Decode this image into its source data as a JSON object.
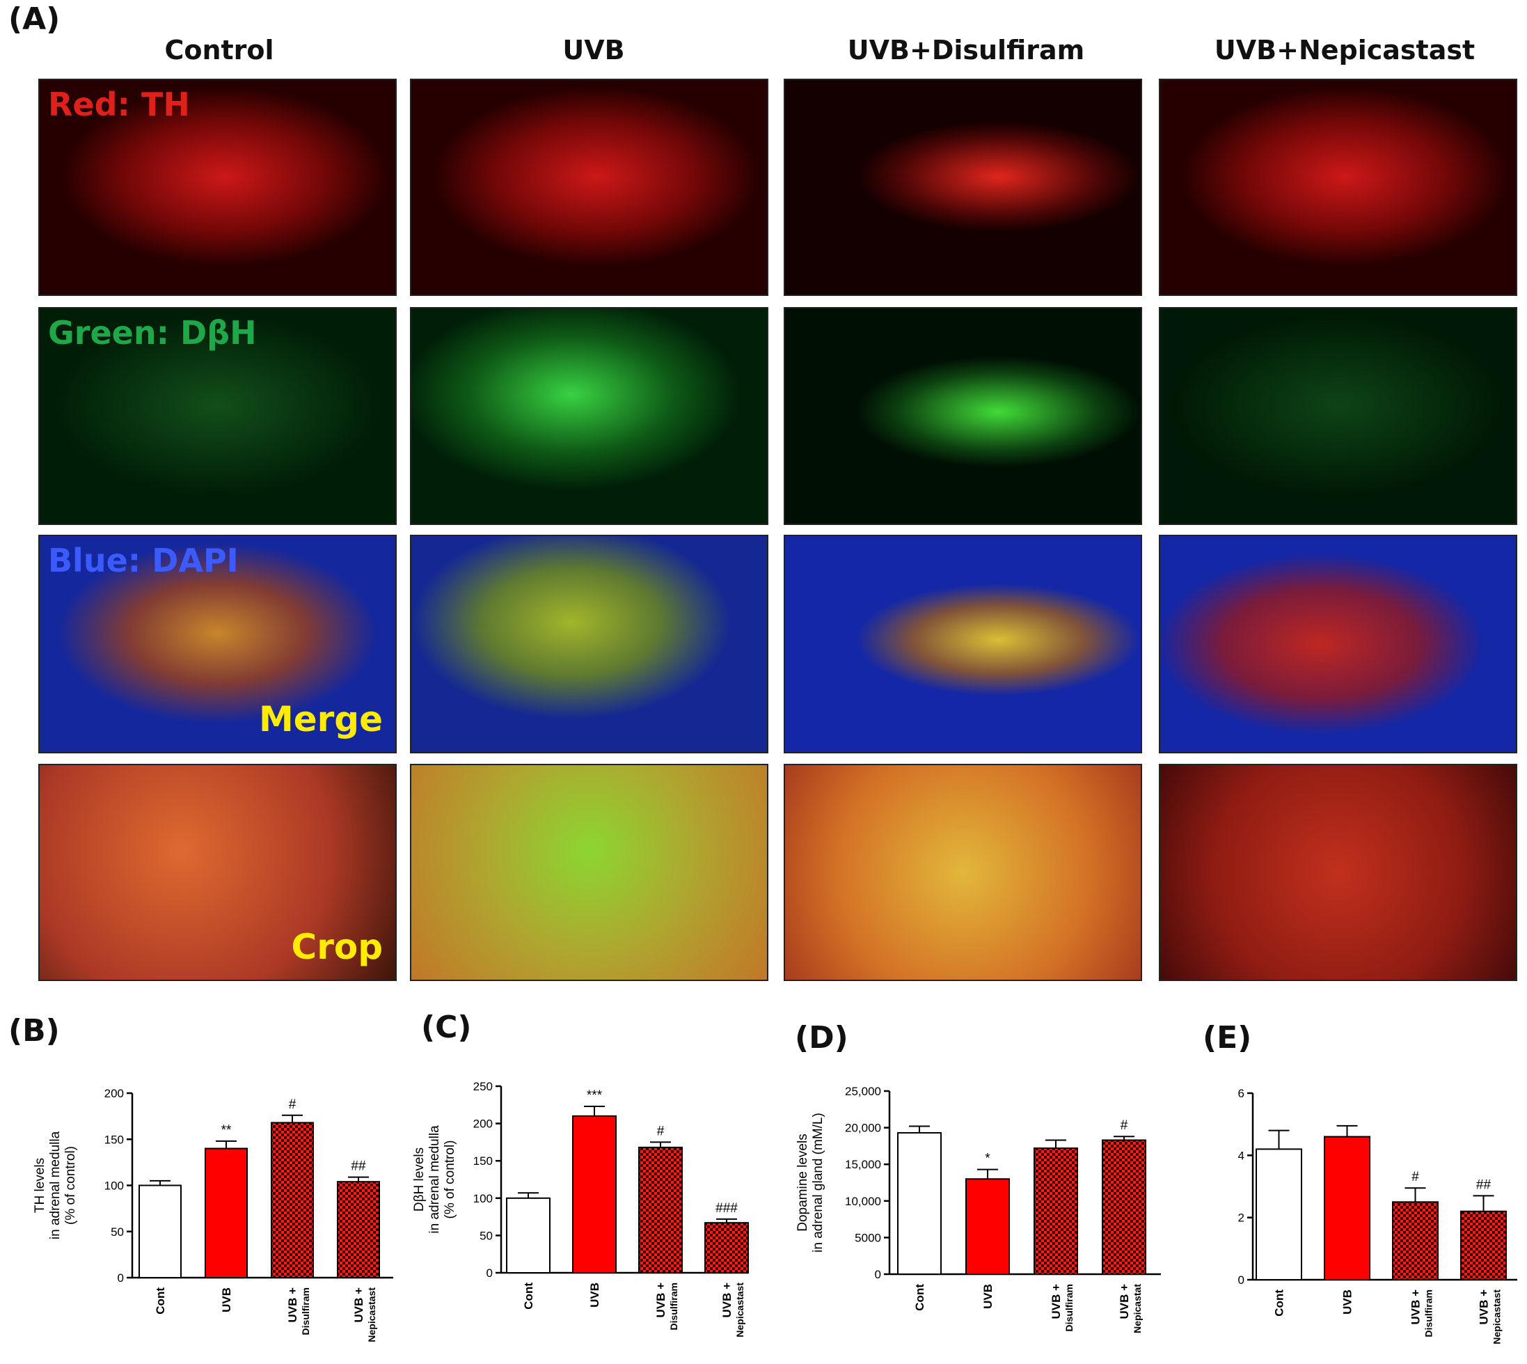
{
  "figure": {
    "panel_a_letter": "(A)",
    "columns": [
      "Control",
      "UVB",
      "UVB+Disulfiram",
      "UVB+Nepicastast"
    ],
    "row_labels": {
      "red": "Red: TH",
      "green": "Green: DβH",
      "blue": "Blue: DAPI",
      "merge": "Merge",
      "crop": "Crop"
    },
    "colors": {
      "red_channel": "#e0211b",
      "green_channel": "#1fa84a",
      "blue_channel": "#3b5bff",
      "merge_text": "#ffec00",
      "bar_red": "#ff0000",
      "bar_dark": "#8b0000"
    }
  },
  "chart_data": [
    {
      "panel": "(B)",
      "type": "bar",
      "categories": [
        "Cont",
        "UVB",
        "UVB +\nDisulfiram",
        "UVB +\nNepicastast"
      ],
      "values": [
        100,
        140,
        168,
        104
      ],
      "errors": [
        5,
        8,
        8,
        5
      ],
      "significance": [
        "",
        "**",
        "#",
        "##"
      ],
      "ylabel": "TH levels\nin adrenal medulla\n(% of control)",
      "ylim": [
        0,
        200
      ],
      "yticks": [
        "0",
        "50",
        "100",
        "150",
        "200"
      ],
      "fills": [
        "white",
        "red",
        "checker",
        "checker"
      ]
    },
    {
      "panel": "(C)",
      "type": "bar",
      "categories": [
        "Cont",
        "UVB",
        "UVB +\nDisulfiram",
        "UVB +\nNepicastast"
      ],
      "values": [
        100,
        210,
        168,
        67
      ],
      "errors": [
        7,
        13,
        7,
        5
      ],
      "significance": [
        "",
        "***",
        "#",
        "###"
      ],
      "ylabel": "DβH levels\nin adrenal medulla\n(% of control)",
      "ylim": [
        0,
        250
      ],
      "yticks": [
        "0",
        "50",
        "100",
        "150",
        "200",
        "250"
      ],
      "fills": [
        "white",
        "red",
        "checker",
        "checker"
      ]
    },
    {
      "panel": "(D)",
      "type": "bar",
      "categories": [
        "Cont",
        "UVB",
        "UVB +\nDisulfiram",
        "UVB +\nNepicastat"
      ],
      "values": [
        19300,
        13000,
        17200,
        18300
      ],
      "errors": [
        900,
        1300,
        1100,
        500
      ],
      "significance": [
        "",
        "*",
        "",
        "#"
      ],
      "ylabel": "Dopamine levels\nin adrenal gland (mM/L)",
      "ylim": [
        0,
        25000
      ],
      "yticks": [
        "0",
        "5000",
        "10,000",
        "15,000",
        "20,000",
        "25,000"
      ],
      "fills": [
        "white",
        "red",
        "checker",
        "checker"
      ]
    },
    {
      "panel": "(E)",
      "type": "bar",
      "categories": [
        "Cont",
        "UVB",
        "UVB +\nDisulfiram",
        "UVB +\nNepicastast"
      ],
      "values": [
        4.2,
        4.6,
        2.5,
        2.2
      ],
      "errors": [
        0.6,
        0.35,
        0.45,
        0.5
      ],
      "significance": [
        "",
        "",
        "#",
        "##"
      ],
      "ylabel": "",
      "ylim": [
        0,
        6
      ],
      "yticks": [
        "0",
        "2",
        "4",
        "6"
      ],
      "fills": [
        "white",
        "red",
        "checker",
        "checker"
      ]
    }
  ]
}
